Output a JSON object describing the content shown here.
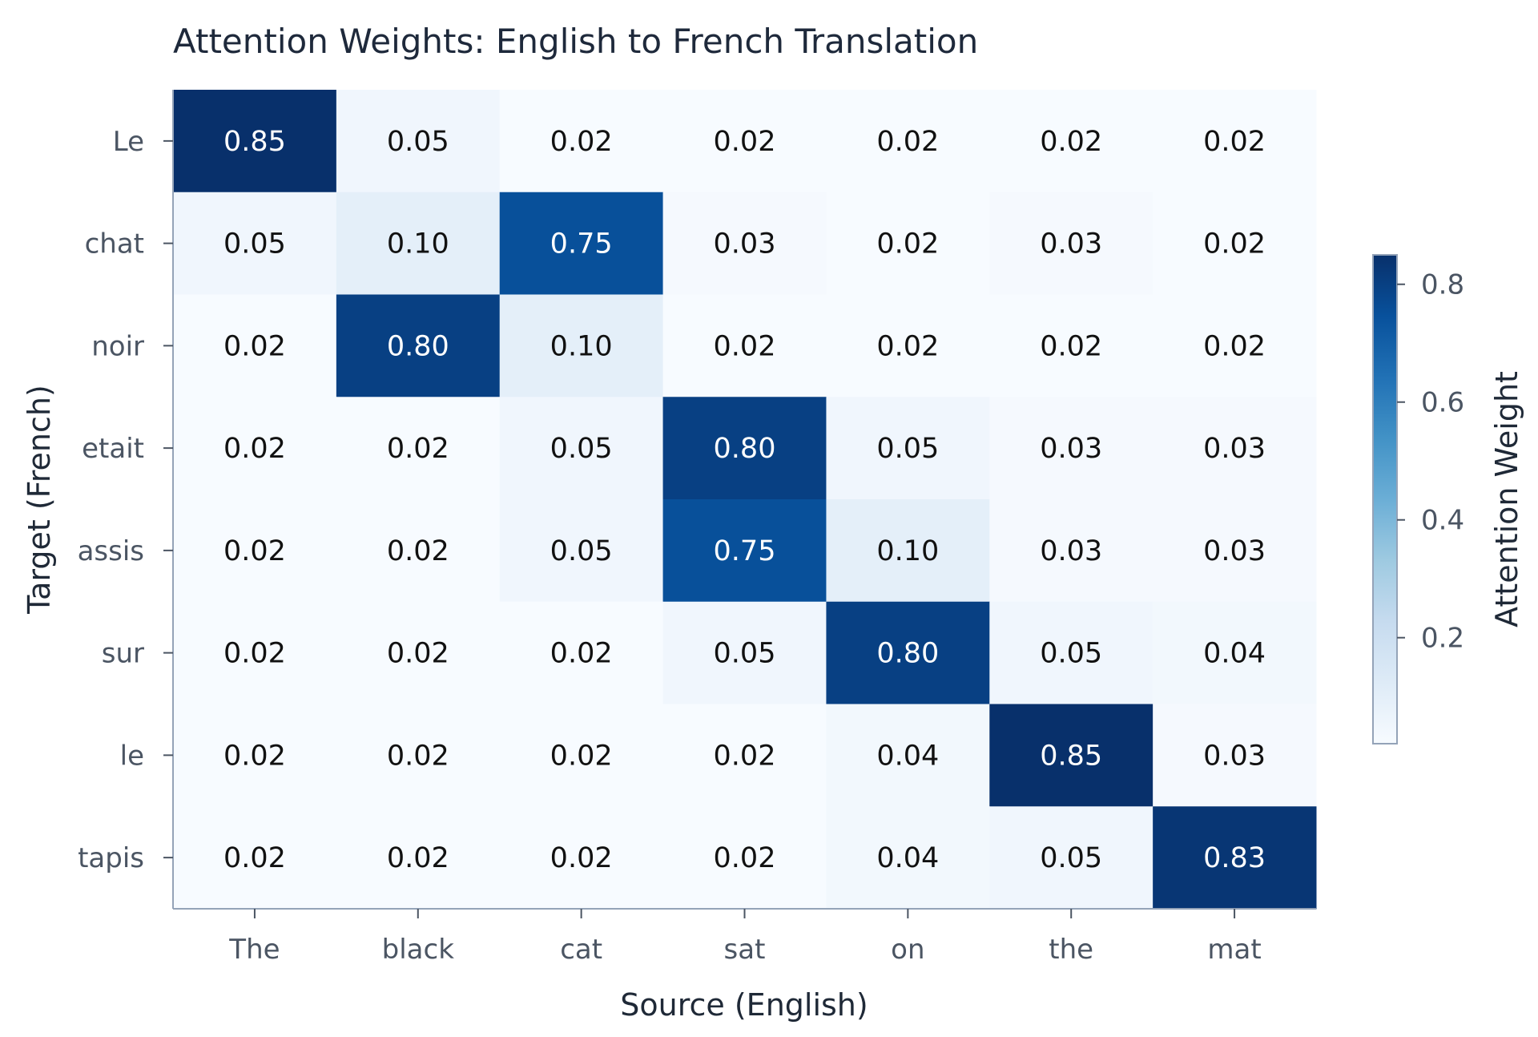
{
  "chart_data": {
    "type": "heatmap",
    "title": "Attention Weights: English to French Translation",
    "xlabel": "Source (English)",
    "ylabel": "Target (French)",
    "x_categories": [
      "The",
      "black",
      "cat",
      "sat",
      "on",
      "the",
      "mat"
    ],
    "y_categories": [
      "Le",
      "chat",
      "noir",
      "etait",
      "assis",
      "sur",
      "le",
      "tapis"
    ],
    "values": [
      [
        0.85,
        0.05,
        0.02,
        0.02,
        0.02,
        0.02,
        0.02
      ],
      [
        0.05,
        0.1,
        0.75,
        0.03,
        0.02,
        0.03,
        0.02
      ],
      [
        0.02,
        0.8,
        0.1,
        0.02,
        0.02,
        0.02,
        0.02
      ],
      [
        0.02,
        0.02,
        0.05,
        0.8,
        0.05,
        0.03,
        0.03
      ],
      [
        0.02,
        0.02,
        0.05,
        0.75,
        0.1,
        0.03,
        0.03
      ],
      [
        0.02,
        0.02,
        0.02,
        0.05,
        0.8,
        0.05,
        0.04
      ],
      [
        0.02,
        0.02,
        0.02,
        0.02,
        0.04,
        0.85,
        0.03
      ],
      [
        0.02,
        0.02,
        0.02,
        0.02,
        0.04,
        0.05,
        0.83
      ]
    ],
    "colormap": "Blues",
    "vmin": 0.02,
    "vmax": 0.85,
    "colorbar": {
      "label": "Attention Weight",
      "ticks": [
        0.2,
        0.4,
        0.6,
        0.8
      ],
      "tick_labels": [
        "0.2",
        "0.4",
        "0.6",
        "0.8"
      ]
    },
    "grid": false
  }
}
